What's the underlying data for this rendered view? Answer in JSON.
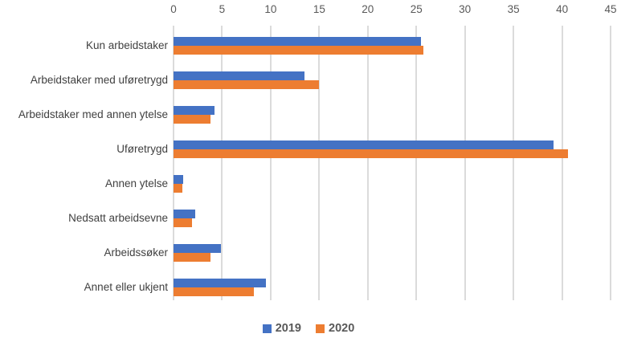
{
  "chart_data": {
    "type": "bar",
    "orientation": "horizontal",
    "title": "",
    "xlabel": "",
    "ylabel": "",
    "categories": [
      "Kun arbeidstaker",
      "Arbeidstaker med uføretrygd",
      "Arbeidstaker med annen ytelse",
      "Uføretrygd",
      "Annen ytelse",
      "Nedsatt arbeidsevne",
      "Arbeidssøker",
      "Annet eller ukjent"
    ],
    "series": [
      {
        "name": "2019",
        "color": "#4472C4",
        "values": [
          25.5,
          13.5,
          4.2,
          39.1,
          1.0,
          2.2,
          4.9,
          9.5
        ]
      },
      {
        "name": "2020",
        "color": "#ED7D31",
        "values": [
          25.7,
          15.0,
          3.8,
          40.6,
          0.9,
          1.9,
          3.8,
          8.3
        ]
      }
    ],
    "xlim": [
      0,
      45
    ],
    "x_ticks": [
      0,
      5,
      10,
      15,
      20,
      25,
      30,
      35,
      40,
      45
    ],
    "grid": true,
    "axis_position": "top",
    "legend_position": "bottom"
  },
  "legend": {
    "items": [
      {
        "label": "2019",
        "color": "#4472C4"
      },
      {
        "label": "2020",
        "color": "#ED7D31"
      }
    ]
  },
  "colors": {
    "background": "#FFFFFF",
    "gridline": "#DBDBDB",
    "tick_label": "#595959",
    "category_label": "#404040",
    "legend_text": "#595959",
    "series_2019": "#4472C4",
    "series_2020": "#ED7D31"
  }
}
